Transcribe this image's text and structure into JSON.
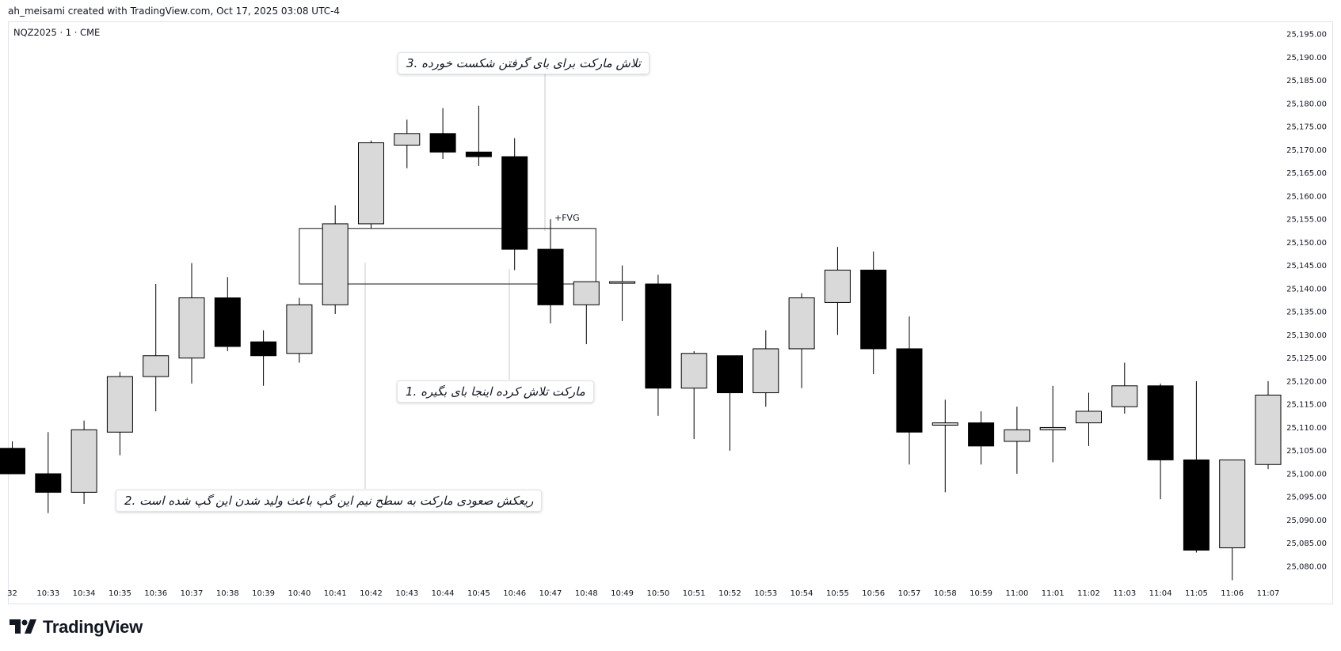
{
  "credit": "ah_meisami created with TradingView.com, Oct 17, 2025 03:08 UTC-4",
  "symbol": "NQZ2025 · 1 · CME",
  "brand": "TradingView",
  "annotations": {
    "note1": "مارکت تلاش کرده اینجا بای بگیره .1",
    "note2": "ریعکش صعودی مارکت به سطح نیم این گپ باعث ولید شدن این گپ شده است .2",
    "note3": "تلاش مارکت برای بای گرفتن شکست خورده .3",
    "fvg_label": "+FVG"
  },
  "chart_data": {
    "type": "candlestick",
    "y_ticks": [
      "25,195.00",
      "25,190.00",
      "25,185.00",
      "25,180.00",
      "25,175.00",
      "25,170.00",
      "25,165.00",
      "25,160.00",
      "25,155.00",
      "25,150.00",
      "25,145.00",
      "25,140.00",
      "25,135.00",
      "25,130.00",
      "25,125.00",
      "25,120.00",
      "25,115.00",
      "25,110.00",
      "25,105.00",
      "25,100.00",
      "25,095.00",
      "25,090.00",
      "25,085.00",
      "25,080.00"
    ],
    "x_ticks": [
      "32",
      "10:33",
      "10:34",
      "10:35",
      "10:36",
      "10:37",
      "10:38",
      "10:39",
      "10:40",
      "10:41",
      "10:42",
      "10:43",
      "10:44",
      "10:45",
      "10:46",
      "10:47",
      "10:48",
      "10:49",
      "10:50",
      "10:51",
      "10:52",
      "10:53",
      "10:54",
      "10:55",
      "10:56",
      "10:57",
      "10:58",
      "10:59",
      "11:00",
      "11:01",
      "11:02",
      "11:03",
      "11:04",
      "11:05",
      "11:06",
      "11:07"
    ],
    "candles": [
      {
        "t": "10:32",
        "o": 25105.5,
        "h": 25107.0,
        "l": 25100.0,
        "c": 25100.0
      },
      {
        "t": "10:33",
        "o": 25100.0,
        "h": 25109.0,
        "l": 25091.5,
        "c": 25096.0
      },
      {
        "t": "10:34",
        "o": 25096.0,
        "h": 25111.5,
        "l": 25093.5,
        "c": 25109.5
      },
      {
        "t": "10:35",
        "o": 25109.0,
        "h": 25122.0,
        "l": 25104.0,
        "c": 25121.0
      },
      {
        "t": "10:36",
        "o": 25121.0,
        "h": 25141.0,
        "l": 25113.5,
        "c": 25125.5
      },
      {
        "t": "10:37",
        "o": 25125.0,
        "h": 25145.5,
        "l": 25119.5,
        "c": 25138.0
      },
      {
        "t": "10:38",
        "o": 25138.0,
        "h": 25142.5,
        "l": 25126.5,
        "c": 25127.5
      },
      {
        "t": "10:39",
        "o": 25128.5,
        "h": 25131.0,
        "l": 25119.0,
        "c": 25125.5
      },
      {
        "t": "10:40",
        "o": 25126.0,
        "h": 25138.0,
        "l": 25124.0,
        "c": 25136.5
      },
      {
        "t": "10:41",
        "o": 25136.5,
        "h": 25158.0,
        "l": 25134.5,
        "c": 25154.0
      },
      {
        "t": "10:42",
        "o": 25154.0,
        "h": 25172.0,
        "l": 25153.0,
        "c": 25171.5
      },
      {
        "t": "10:43",
        "o": 25171.0,
        "h": 25176.5,
        "l": 25166.0,
        "c": 25173.5
      },
      {
        "t": "10:44",
        "o": 25173.5,
        "h": 25179.0,
        "l": 25168.0,
        "c": 25169.5
      },
      {
        "t": "10:45",
        "o": 25169.5,
        "h": 25179.5,
        "l": 25166.5,
        "c": 25168.5
      },
      {
        "t": "10:46",
        "o": 25168.5,
        "h": 25172.5,
        "l": 25144.0,
        "c": 25148.5
      },
      {
        "t": "10:47",
        "o": 25148.5,
        "h": 25155.0,
        "l": 25132.5,
        "c": 25136.5
      },
      {
        "t": "10:48",
        "o": 25136.5,
        "h": 25141.5,
        "l": 25128.0,
        "c": 25141.5
      },
      {
        "t": "10:49",
        "o": 25141.5,
        "h": 25145.0,
        "l": 25133.0,
        "c": 25141.5
      },
      {
        "t": "10:50",
        "o": 25141.0,
        "h": 25143.0,
        "l": 25112.5,
        "c": 25118.5
      },
      {
        "t": "10:51",
        "o": 25118.5,
        "h": 25126.5,
        "l": 25107.5,
        "c": 25126.0
      },
      {
        "t": "10:52",
        "o": 25125.5,
        "h": 25125.5,
        "l": 25105.0,
        "c": 25117.5
      },
      {
        "t": "10:53",
        "o": 25117.5,
        "h": 25131.0,
        "l": 25114.5,
        "c": 25127.0
      },
      {
        "t": "10:54",
        "o": 25127.0,
        "h": 25139.0,
        "l": 25118.5,
        "c": 25138.0
      },
      {
        "t": "10:55",
        "o": 25137.0,
        "h": 25149.0,
        "l": 25130.0,
        "c": 25144.0
      },
      {
        "t": "10:56",
        "o": 25144.0,
        "h": 25148.0,
        "l": 25121.5,
        "c": 25127.0
      },
      {
        "t": "10:57",
        "o": 25127.0,
        "h": 25134.0,
        "l": 25102.0,
        "c": 25109.0
      },
      {
        "t": "10:58",
        "o": 25110.5,
        "h": 25116.0,
        "l": 25096.0,
        "c": 25111.0
      },
      {
        "t": "10:59",
        "o": 25111.0,
        "h": 25113.5,
        "l": 25102.0,
        "c": 25106.0
      },
      {
        "t": "11:00",
        "o": 25107.0,
        "h": 25114.5,
        "l": 25100.0,
        "c": 25109.5
      },
      {
        "t": "11:01",
        "o": 25109.5,
        "h": 25119.0,
        "l": 25102.5,
        "c": 25110.0
      },
      {
        "t": "11:02",
        "o": 25111.0,
        "h": 25117.5,
        "l": 25106.0,
        "c": 25113.5
      },
      {
        "t": "11:03",
        "o": 25114.5,
        "h": 25124.0,
        "l": 25113.0,
        "c": 25119.0
      },
      {
        "t": "11:04",
        "o": 25119.0,
        "h": 25119.5,
        "l": 25094.5,
        "c": 25103.0
      },
      {
        "t": "11:05",
        "o": 25103.0,
        "h": 25120.0,
        "l": 25083.0,
        "c": 25083.5
      },
      {
        "t": "11:06",
        "o": 25084.0,
        "h": 25103.0,
        "l": 25077.0,
        "c": 25103.0
      },
      {
        "t": "11:07",
        "o": 25102.0,
        "h": 25120.0,
        "l": 25101.0,
        "c": 25117.0
      }
    ],
    "fvg_zone": {
      "top": 25153.0,
      "bottom": 25141.0,
      "start": "10:40",
      "end": "10:48"
    },
    "colors": {
      "up": "#d9d9d9",
      "down": "#000000",
      "outline": "#000000"
    },
    "grid": false
  }
}
